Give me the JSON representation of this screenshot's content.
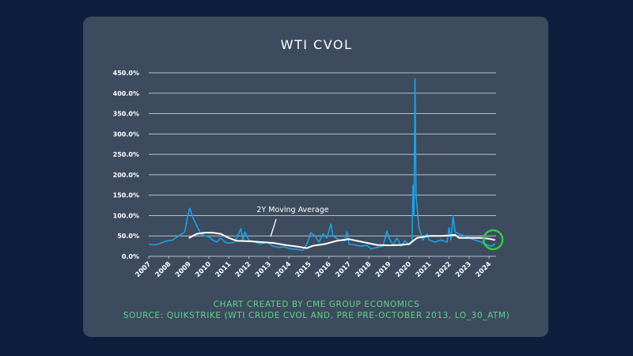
{
  "chart_data": {
    "type": "line",
    "title": "WTI CVOL",
    "xlabel": "",
    "ylabel": "",
    "ylim": [
      0,
      450
    ],
    "xlim": [
      2007,
      2024.4
    ],
    "y_ticks": [
      "0.0%",
      "50.0%",
      "100.0%",
      "150.0%",
      "200.0%",
      "250.0%",
      "300.0%",
      "350.0%",
      "400.0%",
      "450.0%"
    ],
    "y_tick_values": [
      0,
      50,
      100,
      150,
      200,
      250,
      300,
      350,
      400,
      450
    ],
    "x_ticks": [
      "2007",
      "2008",
      "2009",
      "2010",
      "2011",
      "2012",
      "2013",
      "2014",
      "2015",
      "2016",
      "2017",
      "2018",
      "2019",
      "2020",
      "2021",
      "2022",
      "2023",
      "2024"
    ],
    "grid": true,
    "annotation": "2Y Moving Average",
    "series": [
      {
        "name": "WTI CVOL",
        "color": "#1aa3e8",
        "x": [
          2007.0,
          2007.3,
          2007.6,
          2007.9,
          2008.2,
          2008.5,
          2008.8,
          2008.95,
          2009.05,
          2009.2,
          2009.4,
          2009.6,
          2009.8,
          2010.0,
          2010.2,
          2010.4,
          2010.6,
          2010.8,
          2011.0,
          2011.3,
          2011.6,
          2011.7,
          2011.8,
          2012.0,
          2012.3,
          2012.6,
          2012.9,
          2013.2,
          2013.5,
          2013.8,
          2014.1,
          2014.4,
          2014.7,
          2014.9,
          2015.1,
          2015.3,
          2015.5,
          2015.7,
          2015.9,
          2016.1,
          2016.2,
          2016.5,
          2016.8,
          2016.9,
          2017.0,
          2017.3,
          2017.6,
          2017.9,
          2018.1,
          2018.4,
          2018.7,
          2018.9,
          2019.0,
          2019.2,
          2019.4,
          2019.6,
          2019.8,
          2020.0,
          2020.15,
          2020.2,
          2020.25,
          2020.3,
          2020.35,
          2020.5,
          2020.7,
          2020.9,
          2021.0,
          2021.3,
          2021.6,
          2021.9,
          2022.0,
          2022.1,
          2022.2,
          2022.3,
          2022.5,
          2022.8,
          2023.0,
          2023.3,
          2023.6,
          2023.9,
          2024.1,
          2024.3
        ],
        "values": [
          30,
          28,
          32,
          38,
          40,
          50,
          60,
          100,
          118,
          95,
          75,
          55,
          50,
          48,
          40,
          35,
          45,
          35,
          32,
          35,
          68,
          40,
          60,
          40,
          35,
          30,
          35,
          25,
          22,
          23,
          18,
          17,
          15,
          30,
          58,
          50,
          35,
          55,
          45,
          80,
          50,
          40,
          38,
          60,
          30,
          28,
          25,
          27,
          18,
          22,
          25,
          62,
          45,
          28,
          45,
          25,
          38,
          28,
          35,
          175,
          100,
          435,
          150,
          70,
          40,
          55,
          40,
          35,
          40,
          35,
          70,
          40,
          100,
          60,
          55,
          50,
          45,
          40,
          35,
          28,
          25,
          30
        ]
      },
      {
        "name": "2Y Moving Average",
        "color": "#ffffff",
        "x": [
          2009.0,
          2009.4,
          2009.8,
          2010.2,
          2010.6,
          2011.0,
          2011.4,
          2012.0,
          2012.6,
          2013.2,
          2013.8,
          2014.4,
          2014.9,
          2015.2,
          2015.8,
          2016.4,
          2017.0,
          2017.4,
          2017.9,
          2018.4,
          2019.0,
          2019.6,
          2020.0,
          2020.4,
          2021.0,
          2021.6,
          2022.0,
          2022.3,
          2022.5,
          2023.0,
          2023.6,
          2024.0,
          2024.3
        ],
        "values": [
          45,
          55,
          58,
          58,
          55,
          45,
          38,
          37,
          35,
          33,
          28,
          24,
          20,
          26,
          30,
          38,
          42,
          38,
          33,
          28,
          27,
          28,
          30,
          45,
          50,
          50,
          51,
          53,
          45,
          45,
          45,
          43,
          40
        ]
      }
    ],
    "highlight": {
      "x": 2024.2,
      "y": 35,
      "color": "#2ecc40"
    },
    "footnotes": [
      "CHART CREATED BY CME GROUP ECONOMICS",
      "SOURCE: QUIKSTRIKE (WTI CRUDE CVOL AND, PRE PRE-OCTOBER 2013, LO_30_ATM)"
    ]
  }
}
